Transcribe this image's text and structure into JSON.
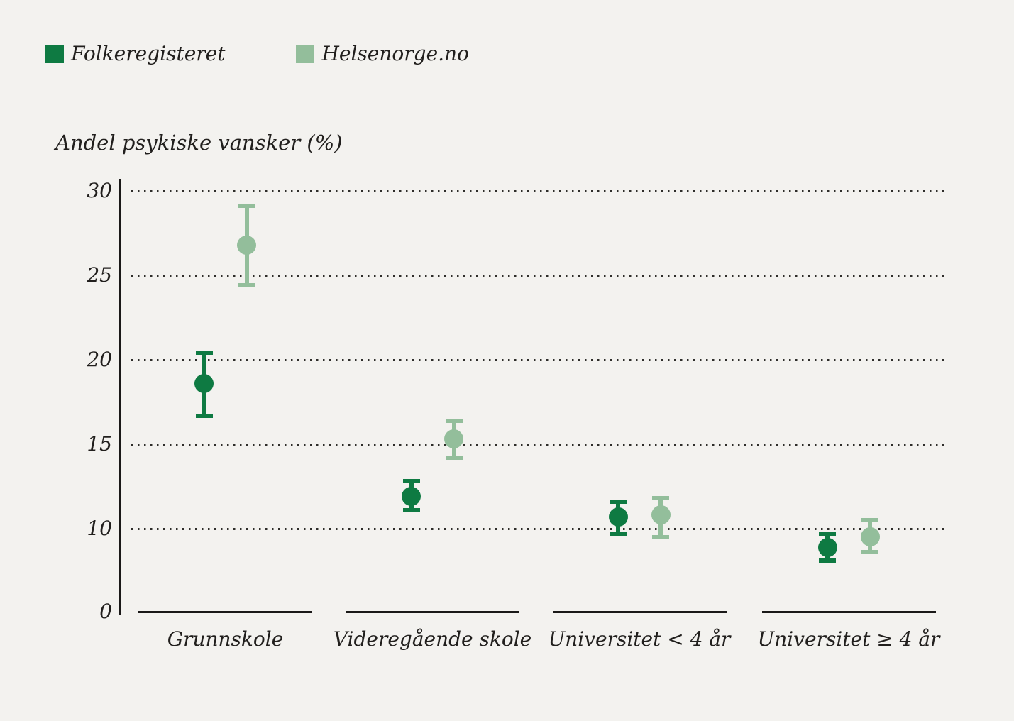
{
  "figure": {
    "background_color": "#f3f2ef",
    "text_color": "#211f1d",
    "axis_color": "#1a1918"
  },
  "chart_data": {
    "type": "scatter",
    "subtype": "point-estimates-with-error-bars",
    "title": "Andel psykiske vansker (%)",
    "ylabel": "Andel psykiske vansker (%)",
    "xlabel": "",
    "categories": [
      "Grunnskole",
      "Videregående skole",
      "Universitet < 4 år",
      "Universitet ≥ 4 år"
    ],
    "series": [
      {
        "name": "Folkeregisteret",
        "color": "#0e7a42",
        "values": [
          18.6,
          11.9,
          10.7,
          8.9
        ],
        "ci_low": [
          16.7,
          11.1,
          9.7,
          8.1
        ],
        "ci_high": [
          20.4,
          12.8,
          11.6,
          9.7
        ]
      },
      {
        "name": "Helsenorge.no",
        "color": "#93be9b",
        "values": [
          26.8,
          15.3,
          10.8,
          9.5
        ],
        "ci_low": [
          24.4,
          14.2,
          9.5,
          8.6
        ],
        "ci_high": [
          29.1,
          16.4,
          11.8,
          10.5
        ]
      }
    ],
    "yticks": [
      30,
      25,
      20,
      15,
      10,
      0
    ],
    "ylim": [
      0,
      30
    ],
    "axis_truncated_below_10": true,
    "grid": "horizontal dotted",
    "legend_position": "top-left"
  }
}
